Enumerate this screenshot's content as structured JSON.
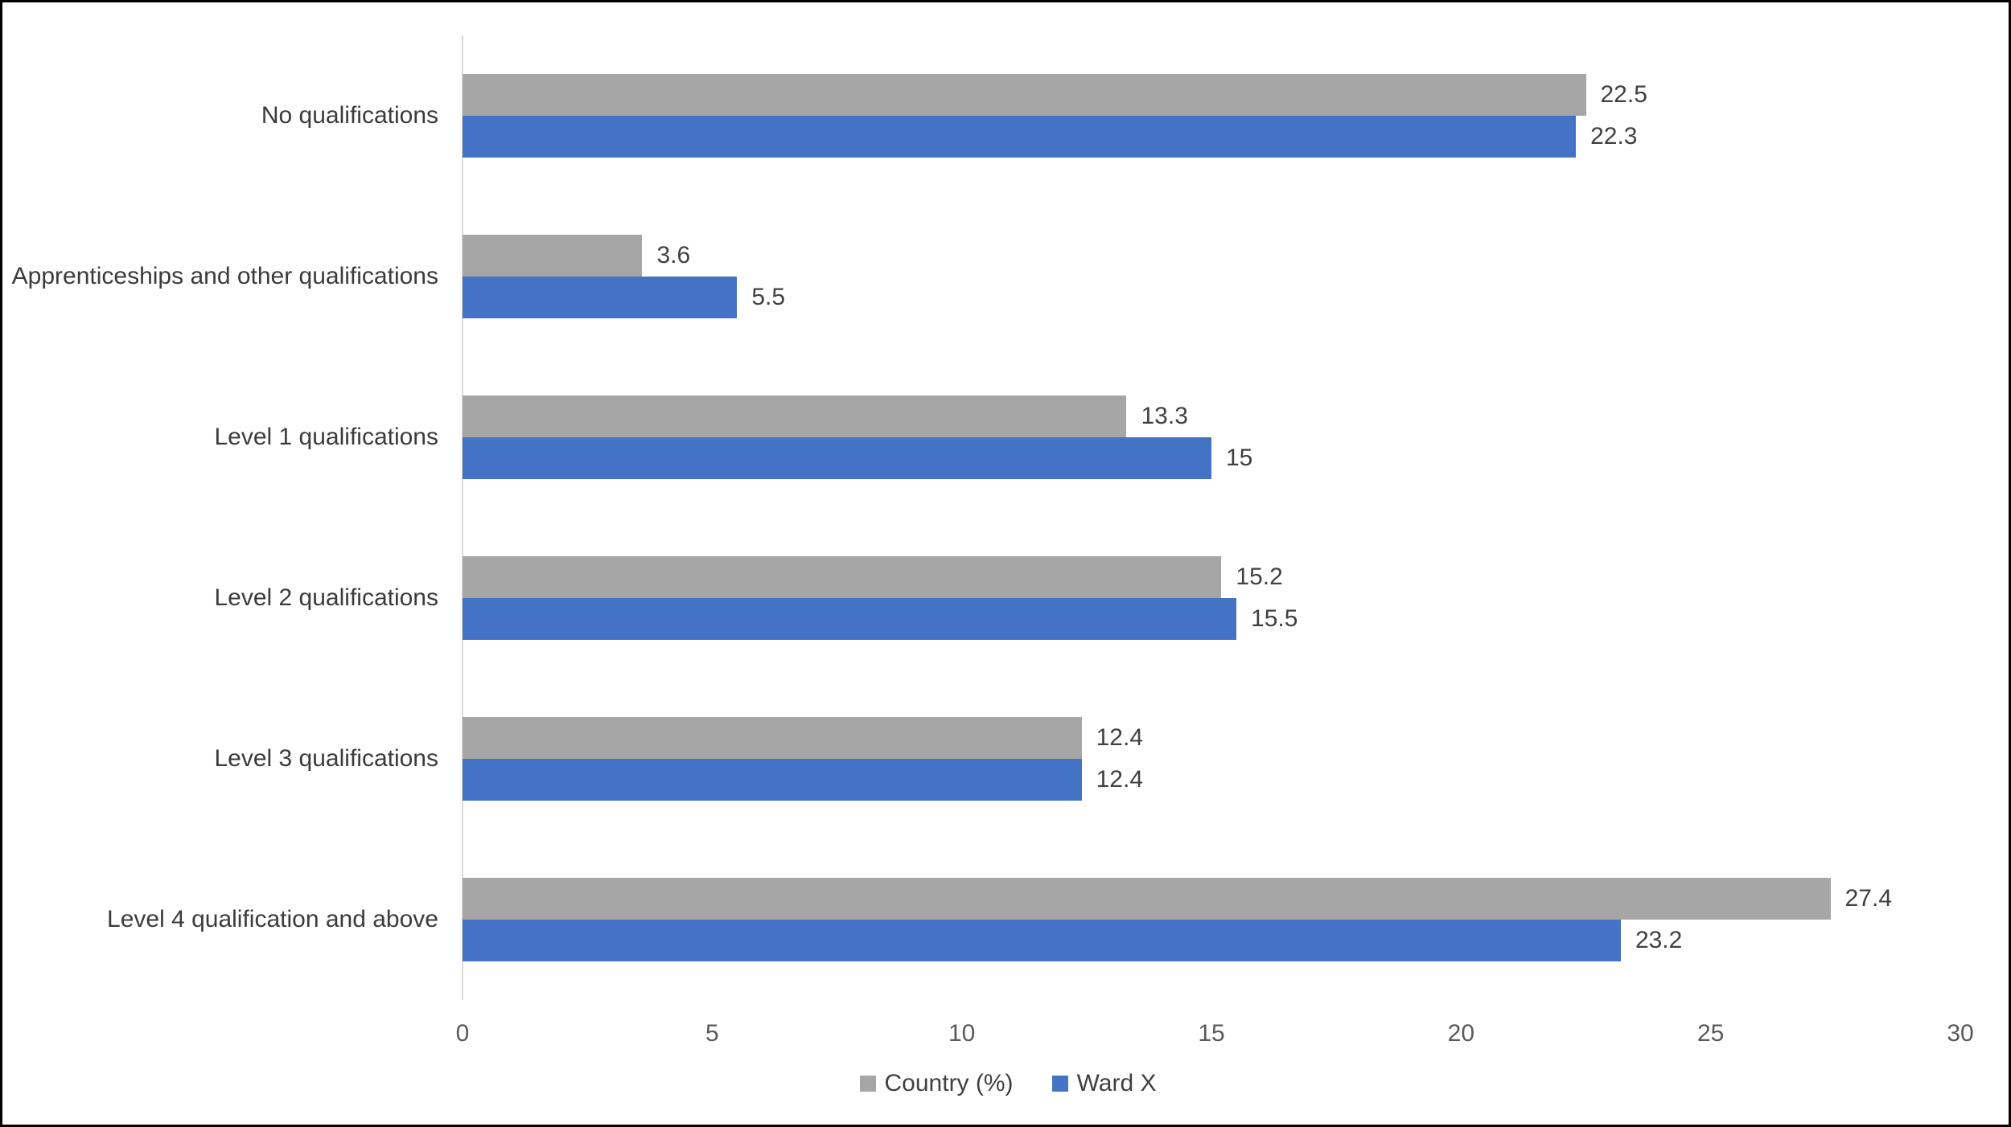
{
  "chart_data": {
    "type": "bar",
    "orientation": "horizontal",
    "categories": [
      "No qualifications",
      "Apprenticeships and other qualifications",
      "Level 1 qualifications",
      "Level 2 qualifications",
      "Level 3 qualifications",
      "Level 4 qualification and above"
    ],
    "series": [
      {
        "name": "Country (%)",
        "color": "#a6a6a6",
        "values": [
          22.5,
          3.6,
          13.3,
          15.2,
          12.4,
          27.4
        ]
      },
      {
        "name": "Ward X",
        "color": "#4472c4",
        "values": [
          22.3,
          5.5,
          15,
          15.5,
          12.4,
          23.2
        ]
      }
    ],
    "xlim": [
      0,
      30
    ],
    "x_ticks": [
      0,
      5,
      10,
      15,
      20,
      25,
      30
    ],
    "data_labels": true,
    "grid": false,
    "legend_position": "bottom",
    "axis_line_color": "#d9d9d9"
  }
}
